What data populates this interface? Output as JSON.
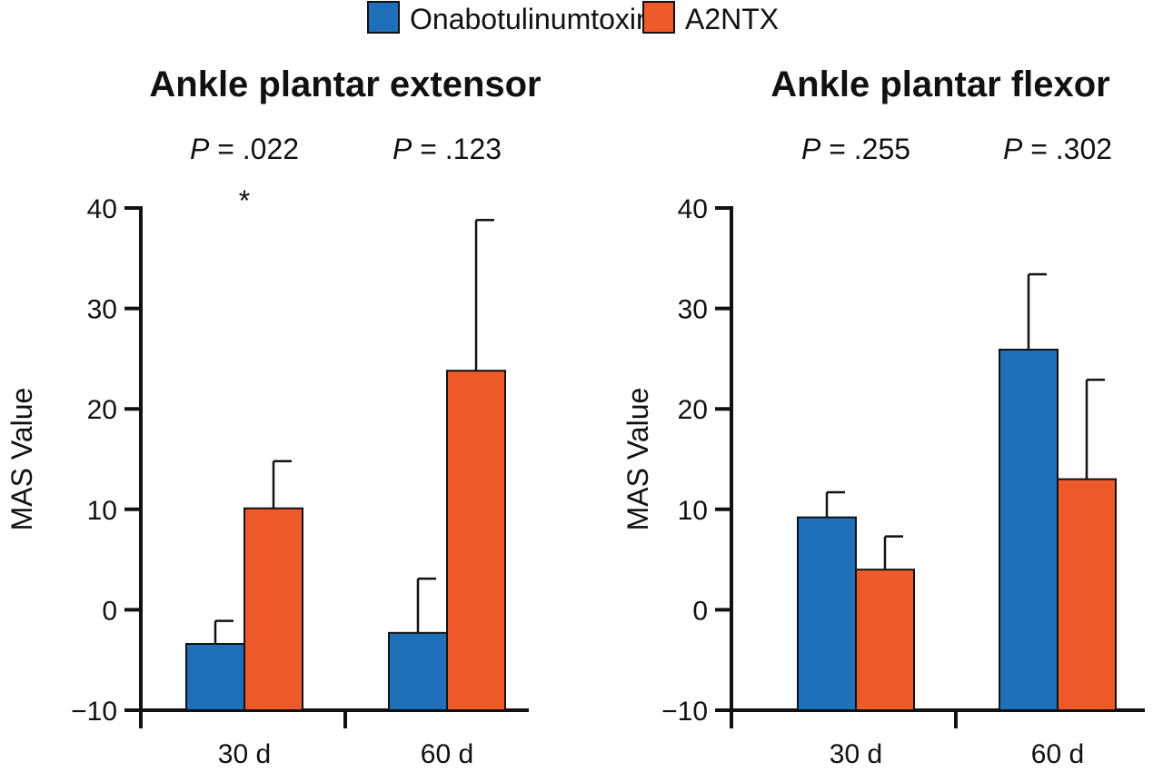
{
  "legend": {
    "position": "top-center"
  },
  "colors": {
    "OnabotulinumtoxinA": "#1f70b8",
    "A2NTX": "#ef5a2a"
  },
  "chart_data": [
    {
      "type": "bar",
      "title": "Ankle plantar extensor",
      "ylabel": "MAS Value",
      "categories": [
        "30 d",
        "60 d"
      ],
      "ylim": [
        -10,
        40
      ],
      "yticks": [
        -10,
        0,
        10,
        20,
        30,
        40
      ],
      "ytick_labels": [
        "−10",
        "0",
        "10",
        "20",
        "30",
        "40"
      ],
      "series": [
        {
          "name": "OnabotulinumtoxinA",
          "values": [
            -3.4,
            -2.3
          ],
          "error_upper": [
            -1.1,
            3.1
          ]
        },
        {
          "name": "A2NTX",
          "values": [
            10.1,
            23.8
          ],
          "error_upper": [
            14.8,
            38.8
          ]
        }
      ],
      "annotations": [
        {
          "category": "30 d",
          "p_label": "P",
          "p_value": " = .022",
          "marker": "*"
        },
        {
          "category": "60 d",
          "p_label": "P",
          "p_value": " = .123",
          "marker": ""
        }
      ]
    },
    {
      "type": "bar",
      "title": "Ankle plantar flexor",
      "ylabel": "MAS Value",
      "categories": [
        "30 d",
        "60 d"
      ],
      "ylim": [
        -10,
        40
      ],
      "yticks": [
        -10,
        0,
        10,
        20,
        30,
        40
      ],
      "ytick_labels": [
        "−10",
        "0",
        "10",
        "20",
        "30",
        "40"
      ],
      "series": [
        {
          "name": "OnabotulinumtoxinA",
          "values": [
            9.2,
            25.9
          ],
          "error_upper": [
            11.7,
            33.4
          ]
        },
        {
          "name": "A2NTX",
          "values": [
            4.0,
            13.0
          ],
          "error_upper": [
            7.3,
            22.9
          ]
        }
      ],
      "annotations": [
        {
          "category": "30 d",
          "p_label": "P",
          "p_value": " = .255",
          "marker": ""
        },
        {
          "category": "60 d",
          "p_label": "P",
          "p_value": " = .302",
          "marker": ""
        }
      ]
    }
  ]
}
